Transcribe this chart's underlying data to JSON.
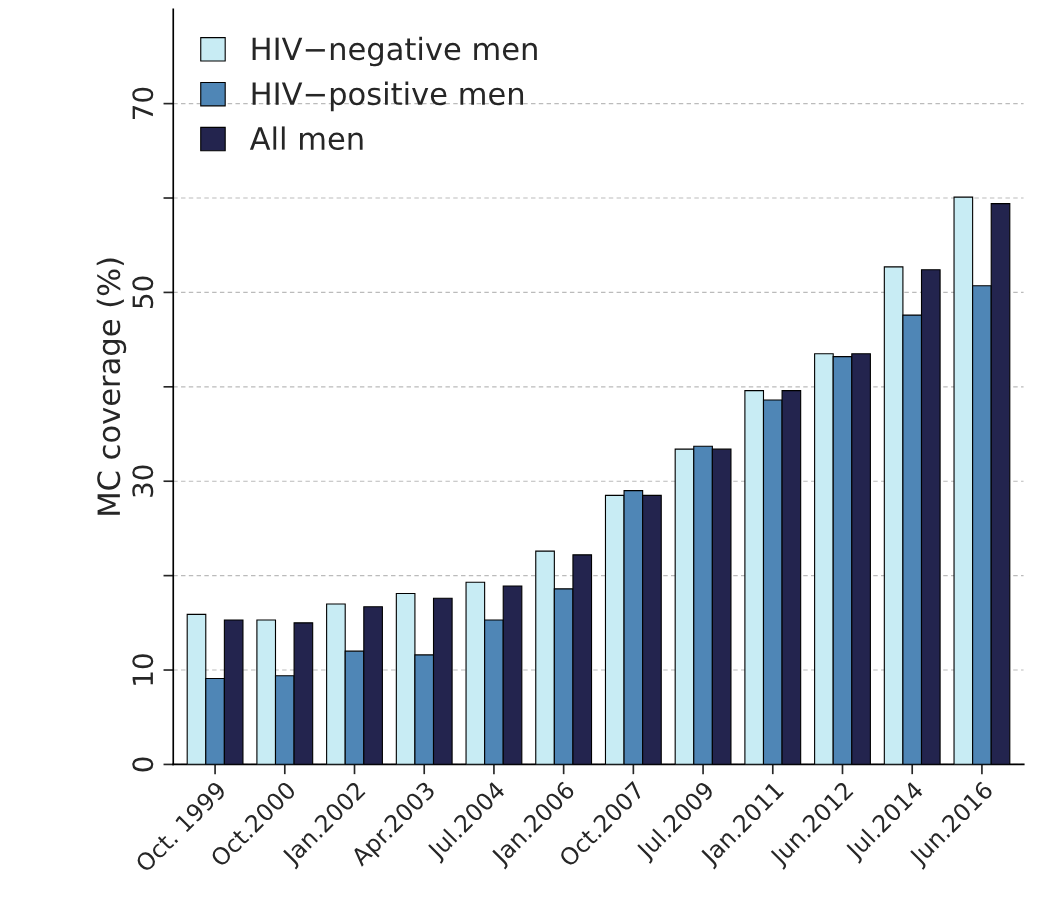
{
  "chart_data": {
    "type": "bar",
    "ylabel": "MC coverage (%)",
    "categories": [
      "Oct. 1999",
      "Oct.2000",
      "Jan.2002",
      "Apr.2003",
      "Jul.2004",
      "Jan.2006",
      "Oct.2007",
      "Jul.2009",
      "Jan.2011",
      "Jun.2012",
      "Jul.2014",
      "Jun.2016"
    ],
    "series": [
      {
        "name": "HIV−negative men",
        "color": "#c8ecf4",
        "values": [
          15.9,
          15.3,
          17.0,
          18.1,
          19.3,
          22.6,
          28.5,
          33.4,
          39.6,
          43.5,
          52.7,
          60.1
        ]
      },
      {
        "name": "HIV−positive men",
        "color": "#4f86b6",
        "values": [
          9.1,
          9.4,
          12.0,
          11.6,
          15.3,
          18.6,
          29.0,
          33.7,
          38.6,
          43.2,
          47.6,
          50.7
        ]
      },
      {
        "name": "All men",
        "color": "#23244e",
        "values": [
          15.3,
          15.0,
          16.7,
          17.6,
          18.9,
          22.2,
          28.5,
          33.4,
          39.6,
          43.5,
          52.4,
          59.4
        ]
      }
    ],
    "ylim": [
      0,
      80
    ],
    "yticks": [
      0,
      10,
      {
        "value": 20,
        "label": null
      },
      30,
      {
        "value": 40,
        "label": null
      },
      50,
      {
        "value": 60,
        "label": null
      },
      70
    ],
    "grid": "y",
    "legend": "top left"
  }
}
